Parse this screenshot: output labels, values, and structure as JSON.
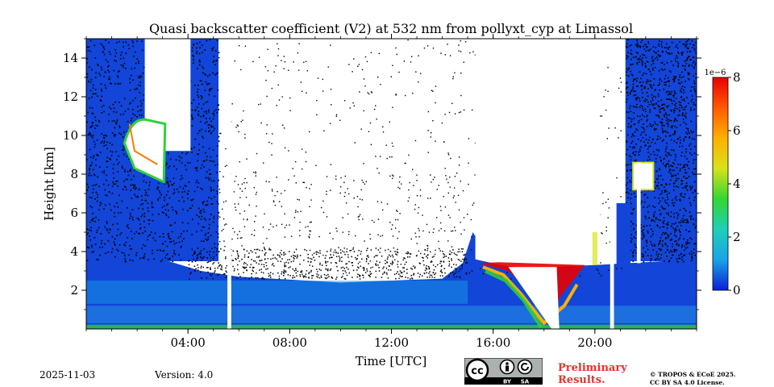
{
  "chart_data": {
    "type": "heatmap",
    "title": "Quasi backscatter coefficient (V2) at 532 nm from pollyxt_cyp at Limassol",
    "xlabel": "Time [UTC]",
    "ylabel": "Height [km]",
    "xlim_hours": [
      0,
      24
    ],
    "ylim_km": [
      0,
      15
    ],
    "x_ticks": [
      {
        "hour": 4,
        "label": "04:00"
      },
      {
        "hour": 8,
        "label": "08:00"
      },
      {
        "hour": 12,
        "label": "12:00"
      },
      {
        "hour": 16,
        "label": "16:00"
      },
      {
        "hour": 20,
        "label": "20:00"
      }
    ],
    "y_ticks": [
      {
        "km": 2,
        "label": "2"
      },
      {
        "km": 4,
        "label": "4"
      },
      {
        "km": 6,
        "label": "6"
      },
      {
        "km": 8,
        "label": "8"
      },
      {
        "km": 10,
        "label": "10"
      },
      {
        "km": 12,
        "label": "12"
      },
      {
        "km": 14,
        "label": "14"
      }
    ],
    "colorbar": {
      "exponent_label": "1e−6",
      "range": [
        0,
        8
      ],
      "ticks": [
        {
          "value": 0,
          "label": "0"
        },
        {
          "value": 2,
          "label": "2"
        },
        {
          "value": 4,
          "label": "4"
        },
        {
          "value": 6,
          "label": "6"
        },
        {
          "value": 8,
          "label": "8"
        }
      ],
      "colors": [
        "#0b1fd6",
        "#1aa3e8",
        "#1fcfb8",
        "#33d633",
        "#d8e21a",
        "#ffb000",
        "#ff5a00",
        "#e80000"
      ]
    },
    "data_gaps_hours": [
      [
        5.55,
        5.7
      ],
      [
        20.6,
        20.75
      ]
    ],
    "boundary_layer_top_km": [
      {
        "hour": 0,
        "km": 3.6
      },
      {
        "hour": 3,
        "km": 3.6
      },
      {
        "hour": 4.5,
        "km": 3.0
      },
      {
        "hour": 6,
        "km": 2.7
      },
      {
        "hour": 10,
        "km": 2.4
      },
      {
        "hour": 14,
        "km": 2.6
      },
      {
        "hour": 14.8,
        "km": 3.4
      },
      {
        "hour": 15.2,
        "km": 5.0
      },
      {
        "hour": 16,
        "km": 3.4
      },
      {
        "hour": 18,
        "km": 3.2
      },
      {
        "hour": 20,
        "km": 3.3
      },
      {
        "hour": 24,
        "km": 3.6
      }
    ],
    "cloud_layers": [
      {
        "hours": [
          1.5,
          3.1
        ],
        "km": [
          7.6,
          10.9
        ],
        "value_peak": 6.5
      },
      {
        "hours": [
          15.3,
          19.6
        ],
        "km": [
          1.2,
          3.4
        ],
        "value_peak": 8
      },
      {
        "hours": [
          21.5,
          22.3
        ],
        "km": [
          7.2,
          8.6
        ],
        "value_peak": 5
      }
    ],
    "colors": {
      "low_signal": "#1245d8",
      "mid_signal": "#1aa3e8",
      "noise": "#000000",
      "no_data": "#ffffff"
    }
  },
  "footer": {
    "date": "2025-11-03",
    "version": "Version: 4.0",
    "preliminary_line1": "Preliminary",
    "preliminary_line2": "Results.",
    "copyright_line1": "© TROPOS & ECoE 2025.",
    "copyright_line2": "CC BY SA 4.0 License.",
    "license_badge": {
      "cc": "cc",
      "by": "BY",
      "sa": "SA"
    }
  }
}
